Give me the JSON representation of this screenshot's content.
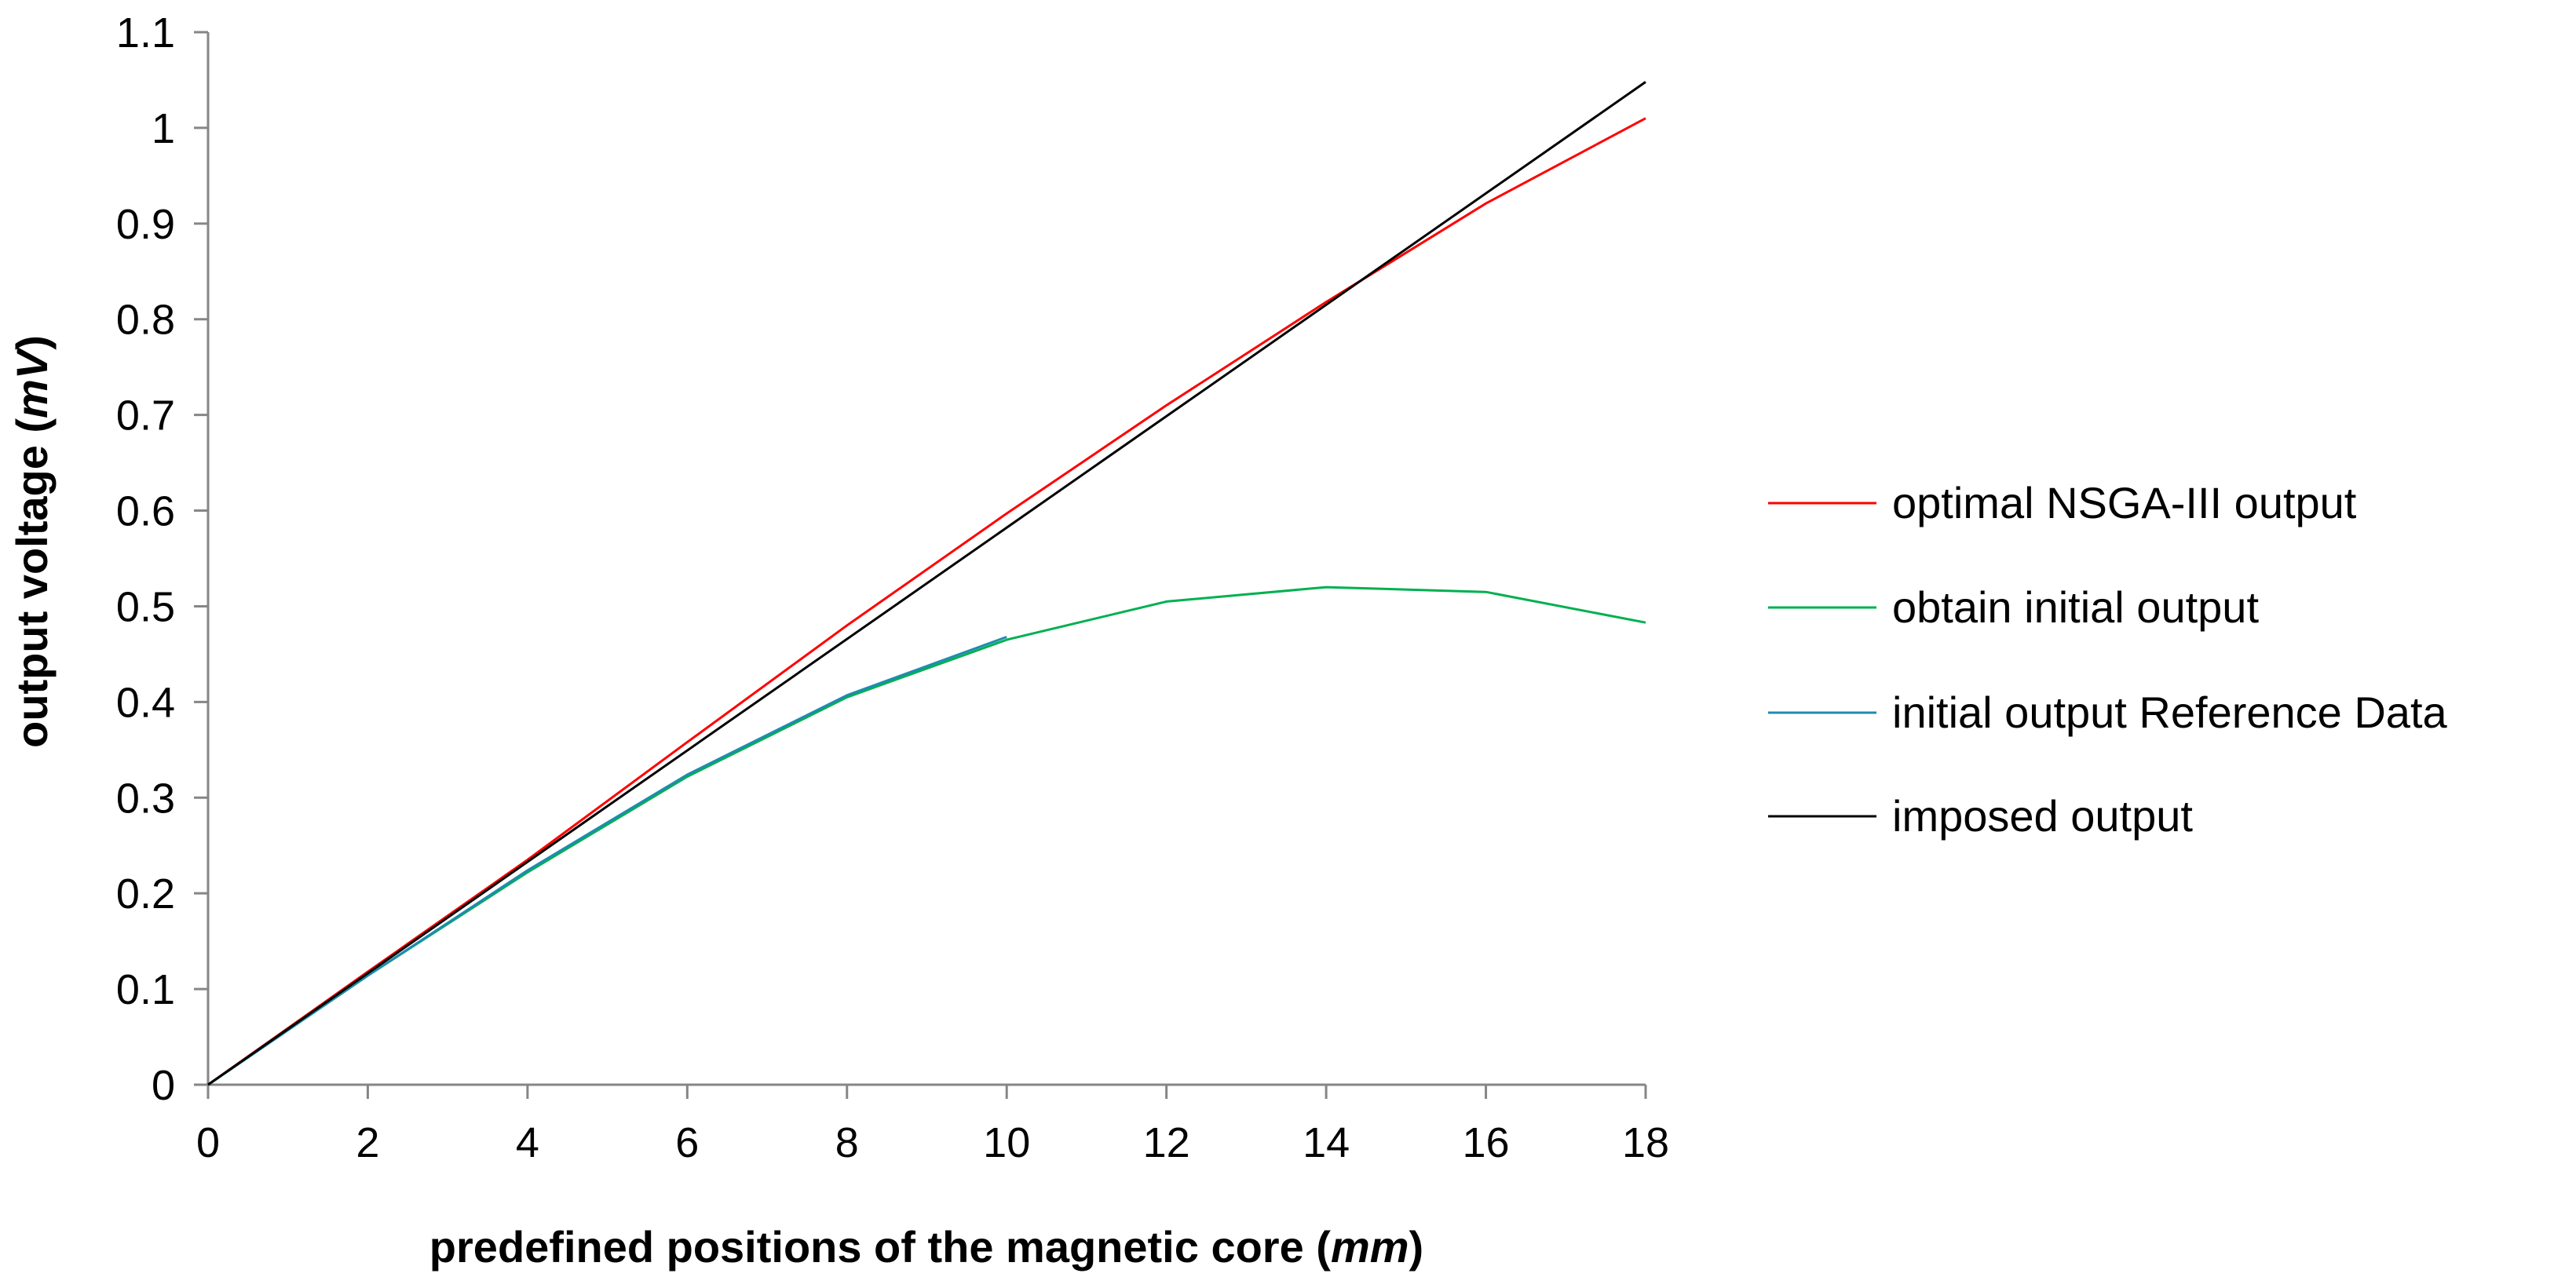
{
  "chart_data": {
    "type": "line",
    "title": "",
    "xlabel_text": "predefined positions of the magnetic core (",
    "xlabel_unit": "mm",
    "xlabel_close": ")",
    "ylabel_text": "output voltage (",
    "ylabel_unit": "mV",
    "ylabel_close": ")",
    "xlim": [
      0,
      18
    ],
    "ylim": [
      0,
      1.1
    ],
    "x_ticks": [
      0,
      2,
      4,
      6,
      8,
      10,
      12,
      14,
      16,
      18
    ],
    "y_ticks": [
      0,
      0.1,
      0.2,
      0.3,
      0.4,
      0.5,
      0.6,
      0.7,
      0.8,
      0.9,
      1,
      1.1
    ],
    "x_tick_labels": [
      "0",
      "2",
      "4",
      "6",
      "8",
      "10",
      "12",
      "14",
      "16",
      "18"
    ],
    "y_tick_labels": [
      "0",
      "0.1",
      "0.2",
      "0.3",
      "0.4",
      "0.5",
      "0.6",
      "0.7",
      "0.8",
      "0.9",
      "1",
      "1.1"
    ],
    "grid": false,
    "legend_position": "right",
    "series": [
      {
        "name": "optimal NSGA-III output",
        "color": "#ff0000",
        "x": [
          0,
          2,
          4,
          6,
          8,
          10,
          12,
          14,
          16,
          18
        ],
        "values": [
          0,
          0.118,
          0.235,
          0.358,
          0.48,
          0.597,
          0.71,
          0.818,
          0.921,
          1.01
        ]
      },
      {
        "name": "obtain initial output",
        "color": "#00b050",
        "x": [
          0,
          2,
          4,
          6,
          8,
          10,
          12,
          14,
          16,
          18
        ],
        "values": [
          0,
          0.114,
          0.222,
          0.322,
          0.405,
          0.465,
          0.505,
          0.52,
          0.515,
          0.483
        ]
      },
      {
        "name": "initial output Reference Data",
        "color": "#1f8bb0",
        "x": [
          0,
          2,
          4,
          6,
          8,
          10
        ],
        "values": [
          0,
          0.114,
          0.224,
          0.324,
          0.407,
          0.468
        ]
      },
      {
        "name": "imposed output",
        "color": "#000000",
        "x": [
          0,
          18
        ],
        "values": [
          0,
          1.048
        ]
      }
    ]
  }
}
